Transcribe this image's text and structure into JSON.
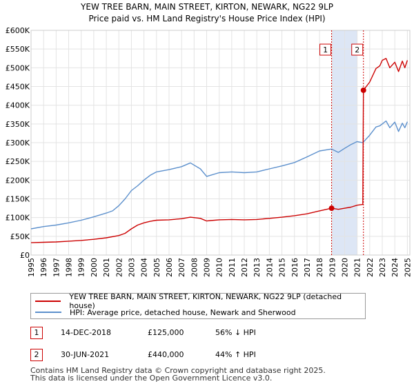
{
  "chart_data": {
    "type": "line",
    "title": "YEW TREE BARN, MAIN STREET, KIRTON, NEWARK, NG22 9LP",
    "subtitle": "Price paid vs. HM Land Registry's House Price Index (HPI)",
    "xlabel": "",
    "ylabel": "",
    "xlim": [
      1995,
      2025.2
    ],
    "ylim": [
      0,
      600000
    ],
    "x_ticks": [
      "1995",
      "1996",
      "1997",
      "1998",
      "1999",
      "2000",
      "2001",
      "2002",
      "2003",
      "2004",
      "2005",
      "2006",
      "2007",
      "2008",
      "2009",
      "2010",
      "2011",
      "2012",
      "2013",
      "2014",
      "2015",
      "2016",
      "2017",
      "2018",
      "2019",
      "2020",
      "2021",
      "2022",
      "2023",
      "2024",
      "2025"
    ],
    "y_ticks": [
      "£0",
      "£50K",
      "£100K",
      "£150K",
      "£200K",
      "£250K",
      "£300K",
      "£350K",
      "£400K",
      "£450K",
      "£500K",
      "£550K",
      "£600K"
    ],
    "grid": true,
    "shaded_region": [
      2019.0,
      2021.0
    ],
    "series": [
      {
        "name": "YEW TREE BARN, MAIN STREET, KIRTON, NEWARK, NG22 9LP (detached house)",
        "color": "#cc0000",
        "x": [
          1995.0,
          1996.0,
          1997.0,
          1998.0,
          1999.0,
          2000.0,
          2001.0,
          2002.0,
          2002.5,
          2003.0,
          2003.5,
          2004.0,
          2004.5,
          2005.0,
          2006.0,
          2007.0,
          2007.7,
          2008.5,
          2009.0,
          2009.3,
          2010.0,
          2011.0,
          2012.0,
          2013.0,
          2014.0,
          2015.0,
          2016.0,
          2017.0,
          2018.0,
          2018.96,
          2019.5,
          2020.0,
          2020.5,
          2021.0,
          2021.45,
          2021.5,
          2022.0,
          2022.5,
          2022.8,
          2023.0,
          2023.3,
          2023.6,
          2024.0,
          2024.3,
          2024.6,
          2024.8,
          2025.0
        ],
        "values": [
          33000,
          34000,
          35000,
          37000,
          39000,
          42000,
          46000,
          52000,
          58000,
          70000,
          80000,
          86000,
          90000,
          93000,
          94000,
          97000,
          101000,
          98000,
          91000,
          92000,
          94000,
          95000,
          94000,
          95000,
          98000,
          101000,
          105000,
          110000,
          118000,
          125000,
          122000,
          125000,
          128000,
          133000,
          135000,
          440000,
          462000,
          498000,
          505000,
          520000,
          525000,
          500000,
          515000,
          490000,
          518000,
          500000,
          520000
        ]
      },
      {
        "name": "HPI: Average price, detached house, Newark and Sherwood",
        "color": "#5b8fcc",
        "x": [
          1995.0,
          1996.0,
          1997.0,
          1998.0,
          1999.0,
          2000.0,
          2001.0,
          2001.5,
          2002.0,
          2002.5,
          2003.0,
          2003.5,
          2004.0,
          2004.5,
          2005.0,
          2006.0,
          2007.0,
          2007.7,
          2008.5,
          2009.0,
          2009.3,
          2010.0,
          2011.0,
          2012.0,
          2013.0,
          2014.0,
          2015.0,
          2016.0,
          2017.0,
          2018.0,
          2018.96,
          2019.5,
          2020.0,
          2020.5,
          2021.0,
          2021.45,
          2022.0,
          2022.5,
          2022.8,
          2023.0,
          2023.3,
          2023.6,
          2024.0,
          2024.3,
          2024.6,
          2024.8,
          2025.0
        ],
        "values": [
          70000,
          76000,
          80000,
          86000,
          93000,
          102000,
          112000,
          118000,
          132000,
          150000,
          172000,
          185000,
          200000,
          213000,
          222000,
          228000,
          236000,
          246000,
          230000,
          210000,
          213000,
          220000,
          222000,
          220000,
          222000,
          230000,
          238000,
          247000,
          262000,
          278000,
          283000,
          274000,
          285000,
          295000,
          303000,
          300000,
          320000,
          342000,
          345000,
          350000,
          358000,
          340000,
          355000,
          330000,
          352000,
          340000,
          356000
        ]
      }
    ],
    "markers": [
      {
        "label": "1",
        "x": 2018.96,
        "value": 125000
      },
      {
        "label": "2",
        "x": 2021.5,
        "value": 440000
      }
    ]
  },
  "legend": {
    "series1": "YEW TREE BARN, MAIN STREET, KIRTON, NEWARK, NG22 9LP (detached house)",
    "series2": "HPI: Average price, detached house, Newark and Sherwood"
  },
  "sales": [
    {
      "label": "1",
      "date": "14-DEC-2018",
      "price": "£125,000",
      "hpi": "56% ↓ HPI"
    },
    {
      "label": "2",
      "date": "30-JUN-2021",
      "price": "£440,000",
      "hpi": "44% ↑ HPI"
    }
  ],
  "footer": {
    "line1": "Contains HM Land Registry data © Crown copyright and database right 2025.",
    "line2": "This data is licensed under the Open Government Licence v3.0."
  }
}
